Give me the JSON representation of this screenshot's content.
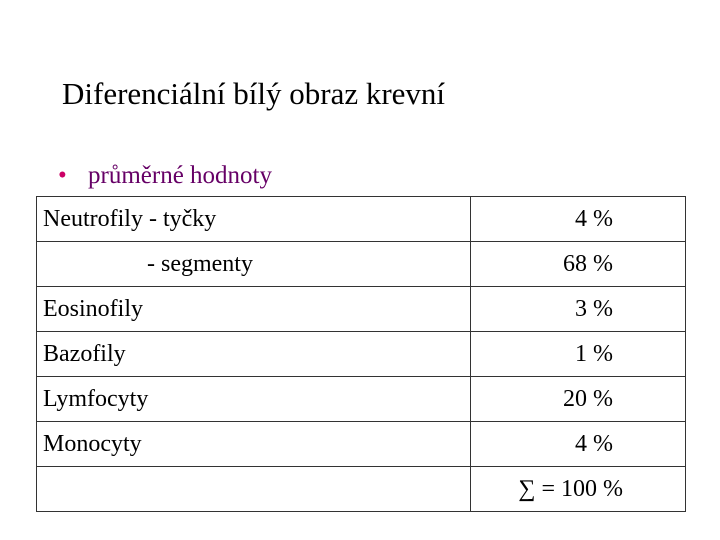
{
  "header": {
    "title": "Diferenciální bílý obraz krevní"
  },
  "bullet": "průměrné hodnoty",
  "table": {
    "rows": [
      {
        "label": "Neutrofily - tyčky",
        "value": "4 %"
      },
      {
        "label": "- segmenty",
        "value": "68 %"
      },
      {
        "label": "Eosinofily",
        "value": "3 %"
      },
      {
        "label": "Bazofily",
        "value": "1 %"
      },
      {
        "label": "Lymfocyty",
        "value": "20 %"
      },
      {
        "label": "Monocyty",
        "value": "4 %"
      },
      {
        "value": "∑ = 100 %"
      }
    ]
  }
}
